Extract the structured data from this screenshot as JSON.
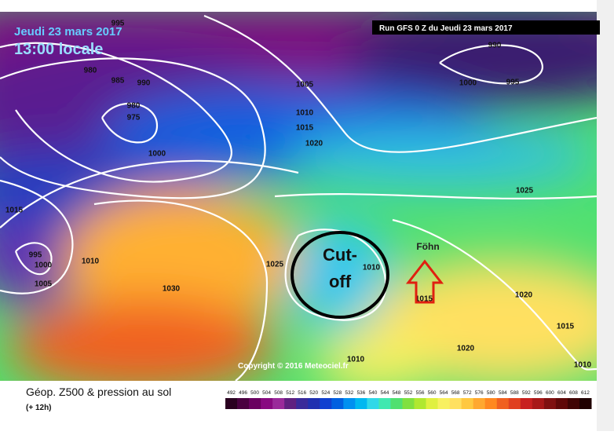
{
  "header": {
    "date": "Jeudi 23 mars 2017",
    "time": "13:00 locale",
    "run": "Run GFS 0 Z du Jeudi 23 mars 2017"
  },
  "isobars": [
    995,
    980,
    985,
    990,
    980,
    975,
    1000,
    1005,
    1010,
    1015,
    1020,
    990,
    1000,
    995,
    1025,
    1015,
    995,
    1000,
    1005,
    1010,
    1030,
    1025,
    1010,
    1015,
    1020,
    1015,
    1020,
    1010,
    1010
  ],
  "annotations": {
    "cutoff": "Cut-off",
    "foehn": "Föhn"
  },
  "copyright": "Copyright © 2016 Meteociel.fr",
  "footer": {
    "title": "Géop. Z500 & pression au sol",
    "lead": "(+ 12h)"
  },
  "scale": {
    "labels": [
      492,
      496,
      500,
      504,
      508,
      512,
      516,
      520,
      524,
      528,
      532,
      536,
      540,
      544,
      548,
      552,
      556,
      560,
      564,
      568,
      572,
      576,
      580,
      584,
      588,
      592,
      596,
      600,
      604,
      608,
      612
    ],
    "colors": [
      "#2a0020",
      "#4a0040",
      "#6a0060",
      "#880a80",
      "#9a2a9a",
      "#602080",
      "#3a2a9a",
      "#2030b0",
      "#1040d0",
      "#0060e0",
      "#0090f0",
      "#00b8f0",
      "#30d8e8",
      "#40e8b0",
      "#50e070",
      "#80e040",
      "#b0e830",
      "#e0f040",
      "#f8f060",
      "#ffe060",
      "#ffc840",
      "#ffa830",
      "#ff8820",
      "#f06020",
      "#e04020",
      "#c82020",
      "#a81818",
      "#801010",
      "#600808",
      "#400404",
      "#200000"
    ]
  }
}
